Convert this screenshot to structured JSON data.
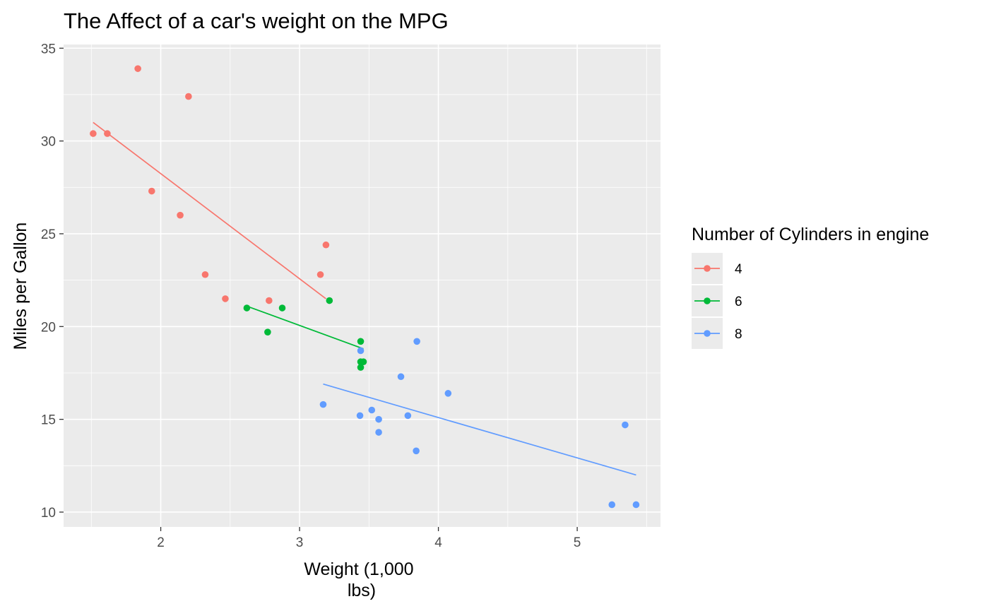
{
  "chart_data": {
    "type": "scatter",
    "title": "The Affect of a car's weight on the MPG",
    "xlabel": "Weight (1,000 lbs)",
    "xlabel_lines": [
      "Weight (1,000",
      "lbs)"
    ],
    "ylabel": "Miles per Gallon",
    "xlim": [
      1.3,
      5.6
    ],
    "ylim": [
      9.2,
      35.2
    ],
    "x_ticks": [
      2,
      3,
      4,
      5
    ],
    "y_ticks": [
      10,
      15,
      20,
      25,
      30,
      35
    ],
    "x_tick_labels": [
      "2",
      "3",
      "4",
      "5"
    ],
    "y_tick_labels": [
      "10",
      "15",
      "20",
      "25",
      "30",
      "35"
    ],
    "grid": true,
    "legend_position": "right",
    "legend_title": "Number of Cylinders in engine",
    "colors": {
      "panel": "#ebebeb",
      "grid": "#ffffff"
    },
    "series": [
      {
        "name": "4",
        "color": "#f8766d",
        "points": [
          [
            2.32,
            22.8
          ],
          [
            3.19,
            24.4
          ],
          [
            3.15,
            22.8
          ],
          [
            2.2,
            32.4
          ],
          [
            1.615,
            30.4
          ],
          [
            1.835,
            33.9
          ],
          [
            2.465,
            21.5
          ],
          [
            1.935,
            27.3
          ],
          [
            2.14,
            26.0
          ],
          [
            1.513,
            30.4
          ],
          [
            2.78,
            21.4
          ]
        ],
        "fit": [
          [
            1.513,
            31.0
          ],
          [
            3.19,
            21.5
          ]
        ]
      },
      {
        "name": "6",
        "color": "#00ba38",
        "points": [
          [
            2.62,
            21.0
          ],
          [
            2.875,
            21.0
          ],
          [
            3.215,
            21.4
          ],
          [
            3.44,
            18.1
          ],
          [
            3.46,
            18.1
          ],
          [
            3.44,
            19.2
          ],
          [
            3.44,
            17.8
          ],
          [
            2.77,
            19.7
          ]
        ],
        "fit": [
          [
            2.62,
            21.1
          ],
          [
            3.46,
            18.8
          ]
        ]
      },
      {
        "name": "8",
        "color": "#619cff",
        "points": [
          [
            3.44,
            18.7
          ],
          [
            3.57,
            14.3
          ],
          [
            4.07,
            16.4
          ],
          [
            3.73,
            17.3
          ],
          [
            3.78,
            15.2
          ],
          [
            5.25,
            10.4
          ],
          [
            5.424,
            10.4
          ],
          [
            5.345,
            14.7
          ],
          [
            3.52,
            15.5
          ],
          [
            3.435,
            15.2
          ],
          [
            3.84,
            13.3
          ],
          [
            3.845,
            19.2
          ],
          [
            3.17,
            15.8
          ],
          [
            3.57,
            15.0
          ]
        ],
        "fit": [
          [
            3.17,
            16.9
          ],
          [
            5.424,
            12.0
          ]
        ]
      }
    ]
  }
}
